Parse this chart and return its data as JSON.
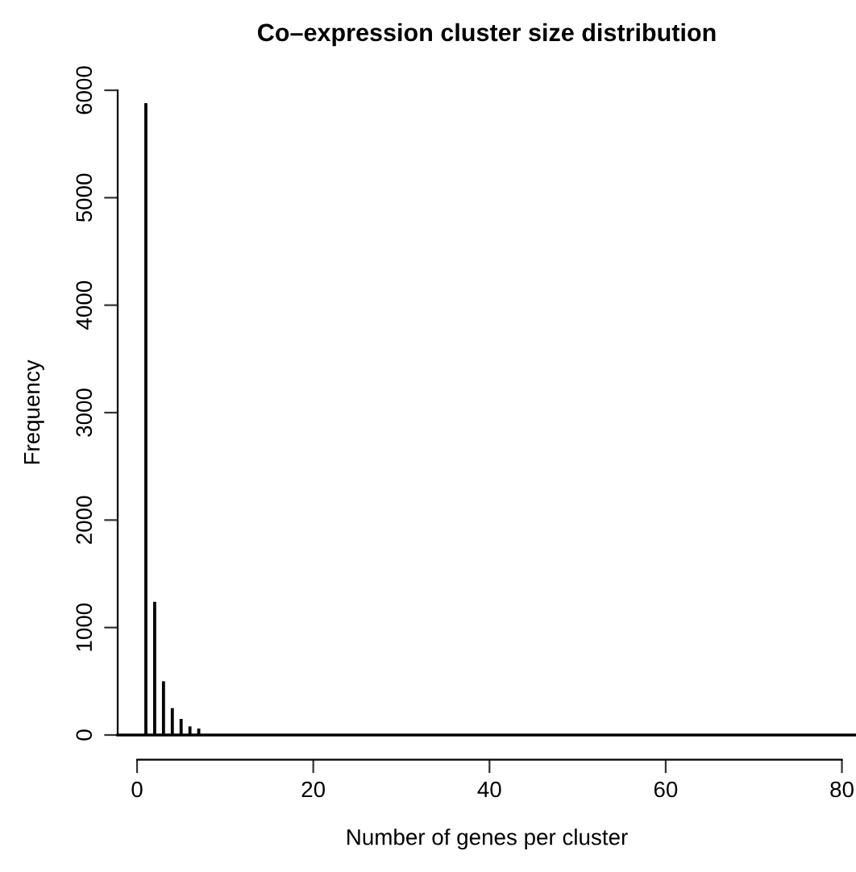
{
  "chart_data": {
    "type": "bar",
    "title": "Co–expression cluster size distribution",
    "xlabel": "Number of genes per cluster",
    "ylabel": "Frequency",
    "x": [
      1,
      2,
      3,
      4,
      5,
      6,
      7
    ],
    "values": [
      5880,
      1240,
      500,
      250,
      150,
      80,
      60
    ],
    "color": "#000000",
    "xlim": [
      -2.2,
      81.6
    ],
    "xticks": [
      0,
      20,
      40,
      60,
      80
    ],
    "ylim": [
      0,
      6000
    ],
    "yticks": [
      0,
      1000,
      2000,
      3000,
      4000,
      5000,
      6000
    ],
    "ref_lines": [
      {
        "axis": "y",
        "value": 0,
        "color": "#000000"
      }
    ],
    "grid": false,
    "legend": false
  }
}
